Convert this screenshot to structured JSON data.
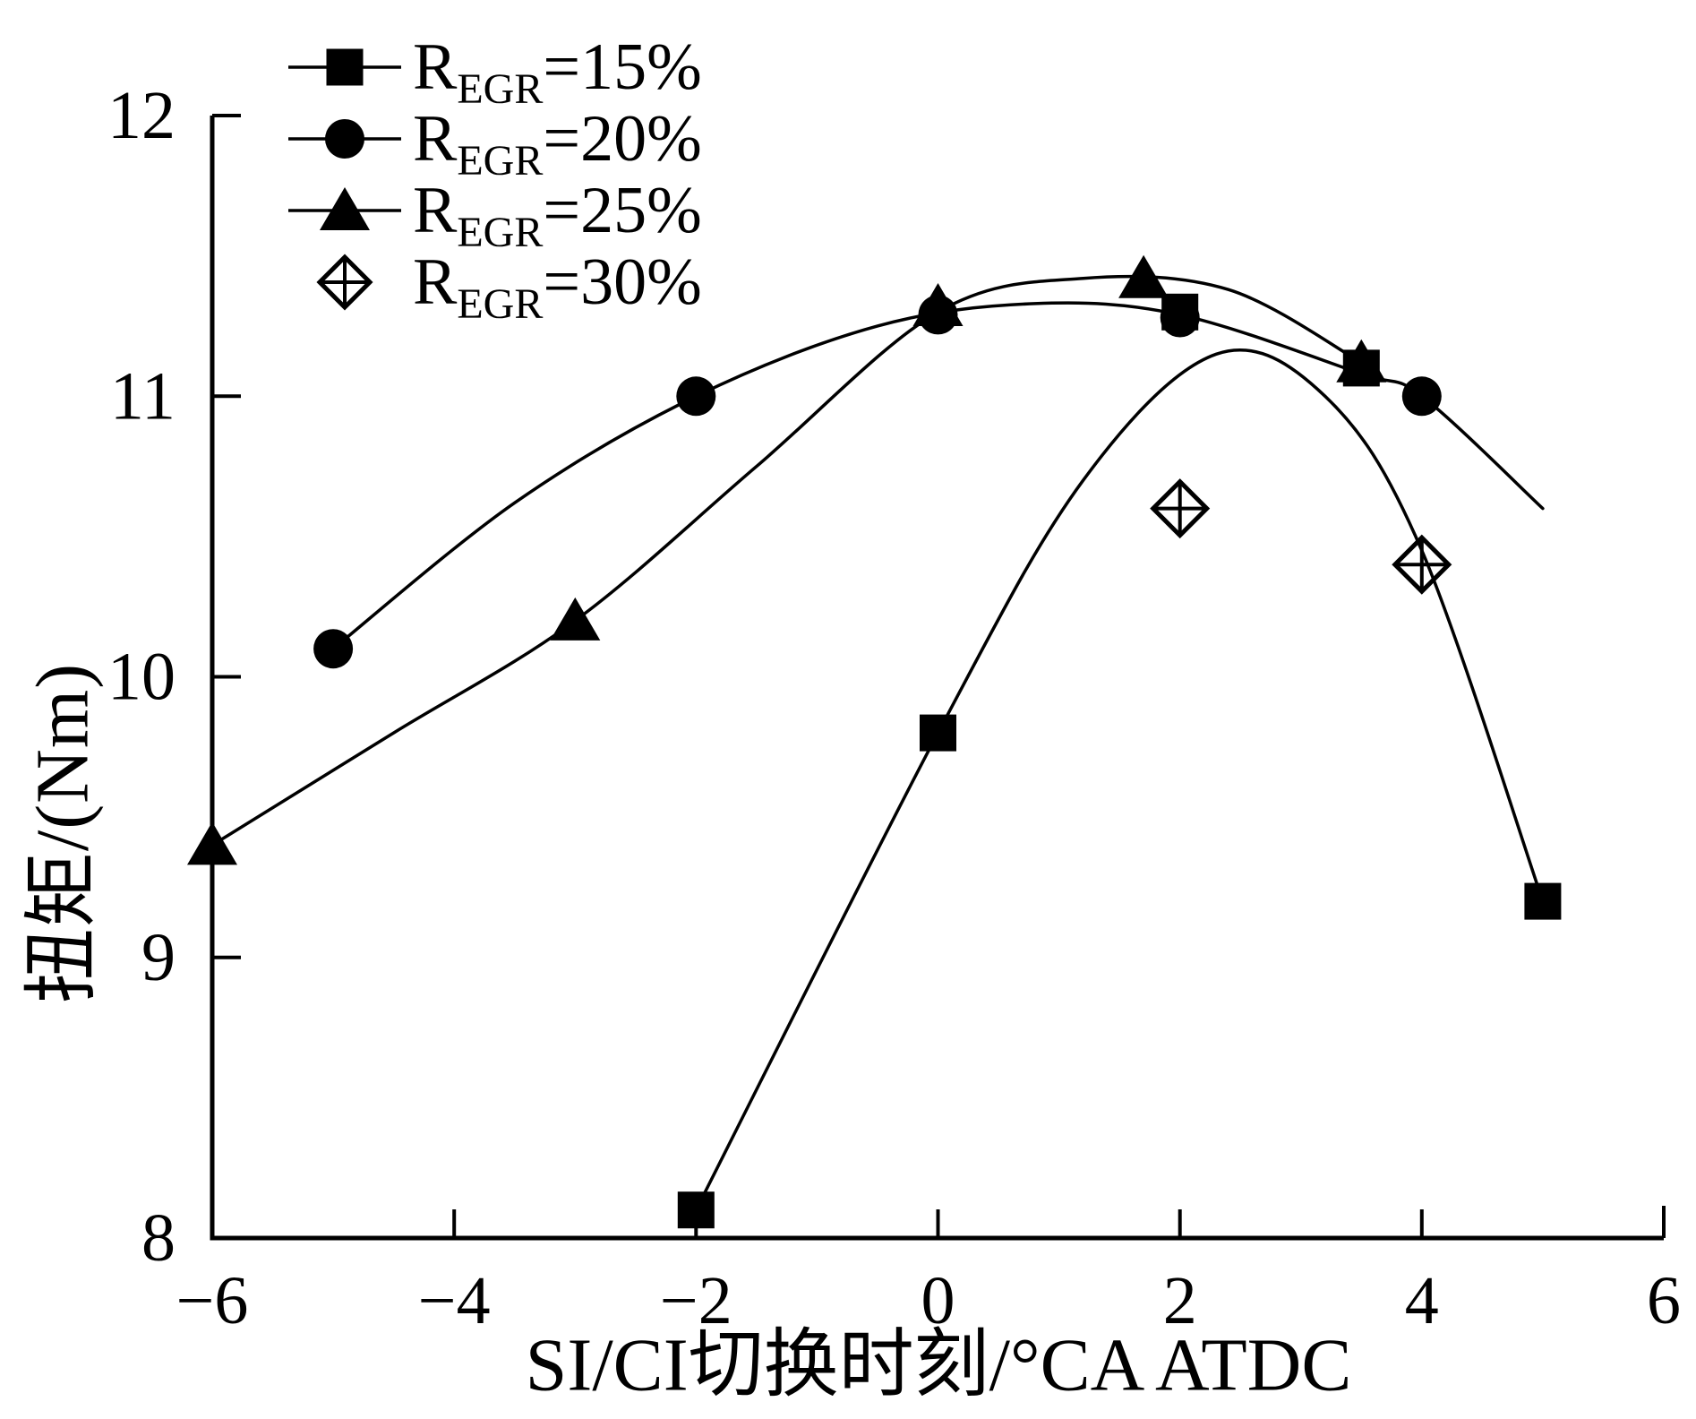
{
  "figure": {
    "background": "#ffffff",
    "ink_color": "#000000"
  },
  "chart_data": {
    "type": "line",
    "title": "",
    "xlabel": "SI/CI切换时刻/°CA ATDC",
    "ylabel": "扭矩/(Nm)",
    "xlim": [
      -6,
      6
    ],
    "ylim": [
      8,
      12
    ],
    "x_ticks": [
      -6,
      -4,
      -2,
      0,
      2,
      4,
      6
    ],
    "y_ticks": [
      8,
      9,
      10,
      11,
      12
    ],
    "grid": false,
    "legend_position": "top-left-inside",
    "series": [
      {
        "name": "REGR=15%",
        "label_base": "R",
        "label_sub": "EGR",
        "label_eq": "=15%",
        "marker": "filled-square",
        "line": true,
        "points": [
          [
            -2,
            8.1
          ],
          [
            0,
            9.8
          ],
          [
            2,
            11.3
          ],
          [
            3.5,
            11.1
          ],
          [
            5,
            9.2
          ]
        ],
        "fit_curve": [
          [
            -2,
            8.1
          ],
          [
            0,
            9.8
          ],
          [
            1.2,
            10.7
          ],
          [
            2.3,
            11.15
          ],
          [
            3.2,
            11.0
          ],
          [
            4,
            10.45
          ],
          [
            5,
            9.2
          ]
        ]
      },
      {
        "name": "REGR=20%",
        "label_base": "R",
        "label_sub": "EGR",
        "label_eq": "=20%",
        "marker": "filled-circle",
        "line": true,
        "points": [
          [
            -5,
            10.1
          ],
          [
            -2,
            11.0
          ],
          [
            0,
            11.29
          ],
          [
            2,
            11.28
          ],
          [
            4,
            11.0
          ]
        ],
        "fit_curve": [
          [
            -5,
            10.1
          ],
          [
            -3.5,
            10.62
          ],
          [
            -2,
            11.0
          ],
          [
            -0.5,
            11.25
          ],
          [
            0.8,
            11.33
          ],
          [
            2,
            11.29
          ],
          [
            3.5,
            11.08
          ],
          [
            4,
            11.0
          ],
          [
            5,
            10.6
          ]
        ]
      },
      {
        "name": "REGR=25%",
        "label_base": "R",
        "label_sub": "EGR",
        "label_eq": "=25%",
        "marker": "filled-triangle",
        "line": true,
        "points": [
          [
            -6,
            9.4
          ],
          [
            -3,
            10.2
          ],
          [
            0,
            11.32
          ],
          [
            1.7,
            11.42
          ],
          [
            3.5,
            11.12
          ]
        ],
        "fit_curve": [
          [
            -6,
            9.4
          ],
          [
            -4.5,
            9.8
          ],
          [
            -3,
            10.2
          ],
          [
            -1.5,
            10.75
          ],
          [
            0,
            11.3
          ],
          [
            1.2,
            11.42
          ],
          [
            2.4,
            11.38
          ],
          [
            3.5,
            11.12
          ]
        ]
      },
      {
        "name": "REGR=30%",
        "label_base": "R",
        "label_sub": "EGR",
        "label_eq": "=30%",
        "marker": "open-diamond-cross",
        "line": false,
        "points": [
          [
            2,
            10.6
          ],
          [
            4,
            10.4
          ]
        ],
        "fit_curve": []
      }
    ]
  }
}
